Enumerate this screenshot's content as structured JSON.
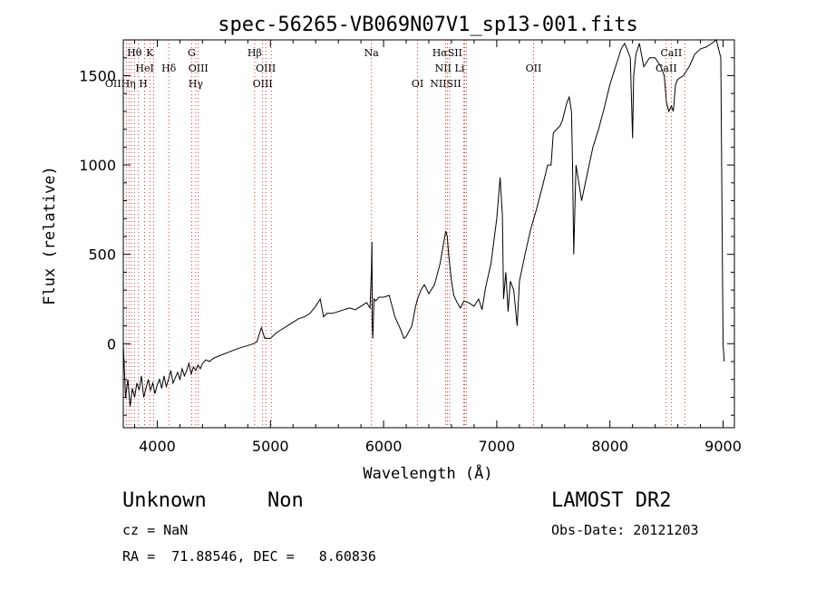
{
  "chart_data": {
    "type": "line",
    "title": "spec-56265-VB069N07V1_sp13-001.fits",
    "xlabel": "Wavelength (Å)",
    "ylabel": "Flux (relative)",
    "xlim": [
      3700,
      9100
    ],
    "ylim": [
      -470,
      1700
    ],
    "xticks": [
      4000,
      5000,
      6000,
      7000,
      8000,
      9000
    ],
    "yticks": [
      0,
      500,
      1000,
      1500
    ],
    "grid": false,
    "line_color": "#000000",
    "marker_color": "#cc0000",
    "series": [
      {
        "x": [
          3700,
          3720,
          3740,
          3760,
          3780,
          3800,
          3820,
          3840,
          3860,
          3880,
          3900,
          3920,
          3940,
          3960,
          3980,
          4000,
          4020,
          4040,
          4060,
          4080,
          4100,
          4120,
          4140,
          4160,
          4180,
          4200,
          4220,
          4240,
          4260,
          4280,
          4300,
          4320,
          4340,
          4360,
          4380,
          4400,
          4430,
          4460,
          4500,
          4540,
          4580,
          4620,
          4660,
          4700,
          4750,
          4800,
          4850,
          4880,
          4900,
          4920,
          4950,
          5000,
          5050,
          5100,
          5150,
          5200,
          5250,
          5300,
          5350,
          5400,
          5440,
          5470,
          5500,
          5550,
          5600,
          5650,
          5700,
          5750,
          5800,
          5850,
          5880,
          5893,
          5897,
          5900,
          5905,
          5915,
          5930,
          5960,
          6000,
          6050,
          6100,
          6150,
          6180,
          6200,
          6250,
          6280,
          6300,
          6330,
          6360,
          6400,
          6450,
          6500,
          6530,
          6550,
          6563,
          6575,
          6600,
          6620,
          6650,
          6680,
          6710,
          6750,
          6800,
          6840,
          6870,
          6900,
          6950,
          7000,
          7030,
          7050,
          7060,
          7080,
          7100,
          7120,
          7150,
          7180,
          7200,
          7250,
          7300,
          7350,
          7400,
          7450,
          7480,
          7500,
          7530,
          7560,
          7580,
          7600,
          7620,
          7640,
          7660,
          7670,
          7680,
          7700,
          7750,
          7800,
          7850,
          7900,
          7950,
          8000,
          8050,
          8100,
          8130,
          8150,
          8180,
          8200,
          8210,
          8230,
          8260,
          8300,
          8350,
          8400,
          8450,
          8480,
          8500,
          8520,
          8542,
          8560,
          8580,
          8600,
          8650,
          8700,
          8750,
          8800,
          8850,
          8900,
          8940,
          8980,
          9000,
          9010
        ],
        "y": [
          0,
          -300,
          -200,
          -350,
          -250,
          -300,
          -220,
          -260,
          -180,
          -300,
          -250,
          -200,
          -260,
          -220,
          -280,
          -230,
          -200,
          -250,
          -180,
          -240,
          -200,
          -150,
          -220,
          -190,
          -160,
          -200,
          -140,
          -180,
          -150,
          -110,
          -170,
          -130,
          -150,
          -120,
          -140,
          -110,
          -90,
          -100,
          -80,
          -70,
          -60,
          -50,
          -40,
          -30,
          -20,
          -10,
          0,
          10,
          50,
          90,
          30,
          30,
          60,
          80,
          100,
          120,
          140,
          150,
          170,
          210,
          250,
          150,
          170,
          170,
          180,
          190,
          200,
          190,
          210,
          230,
          200,
          420,
          570,
          100,
          30,
          250,
          240,
          260,
          260,
          270,
          150,
          80,
          30,
          40,
          100,
          200,
          250,
          300,
          330,
          280,
          330,
          450,
          560,
          630,
          600,
          500,
          350,
          270,
          230,
          200,
          240,
          230,
          210,
          250,
          190,
          310,
          450,
          700,
          930,
          720,
          250,
          400,
          180,
          350,
          300,
          100,
          350,
          500,
          640,
          750,
          870,
          1000,
          1000,
          1180,
          1200,
          1220,
          1250,
          1300,
          1350,
          1380,
          1300,
          1000,
          500,
          1000,
          800,
          950,
          1100,
          1200,
          1320,
          1450,
          1550,
          1650,
          1680,
          1650,
          1600,
          1150,
          1500,
          1620,
          1680,
          1550,
          1600,
          1600,
          1550,
          1500,
          1350,
          1300,
          1330,
          1300,
          1450,
          1480,
          1500,
          1550,
          1620,
          1650,
          1660,
          1680,
          1700,
          1600,
          0,
          -100
        ]
      }
    ],
    "lines": [
      {
        "label": "Hθ",
        "x": 3798,
        "row": 0
      },
      {
        "label": "K",
        "x": 3934,
        "row": 0
      },
      {
        "label": "G",
        "x": 4304,
        "row": 0
      },
      {
        "label": "Hβ",
        "x": 4861,
        "row": 0
      },
      {
        "label": "Na",
        "x": 5893,
        "row": 0
      },
      {
        "label": "HαSII",
        "x": 6563,
        "row": 0
      },
      {
        "label": "CaII",
        "x": 8542,
        "row": 0
      },
      {
        "label": "HeI",
        "x": 3889,
        "row": 1
      },
      {
        "label": "Hδ",
        "x": 4102,
        "row": 1
      },
      {
        "label": "OIII",
        "x": 4363,
        "row": 1
      },
      {
        "label": "OIII",
        "x": 4959,
        "row": 1
      },
      {
        "label": "NII Li",
        "x": 6584,
        "row": 1
      },
      {
        "label": "OII",
        "x": 7325,
        "row": 1
      },
      {
        "label": "CaII",
        "x": 8498,
        "row": 1
      },
      {
        "label": "OIIHη H",
        "x": 3727,
        "row": 2
      },
      {
        "label": "Hγ",
        "x": 4340,
        "row": 2
      },
      {
        "label": "OIII",
        "x": 4931,
        "row": 2
      },
      {
        "label": "OI",
        "x": 6300,
        "row": 2
      },
      {
        "label": "NIISII",
        "x": 6548,
        "row": 2
      }
    ],
    "marker_x": [
      3727,
      3750,
      3771,
      3798,
      3835,
      3889,
      3934,
      3969,
      4102,
      4304,
      4340,
      4363,
      4861,
      4931,
      4959,
      5007,
      5893,
      6300,
      6548,
      6563,
      6584,
      6708,
      6716,
      6731,
      7325,
      8498,
      8542,
      8662
    ]
  },
  "info": {
    "class_label": "Unknown",
    "subclass_label": "Non",
    "survey": "LAMOST DR2",
    "cz": "cz = NaN",
    "obs_date": "Obs-Date: 20121203",
    "coords": "RA =  71.88546, DEC =   8.60836"
  }
}
